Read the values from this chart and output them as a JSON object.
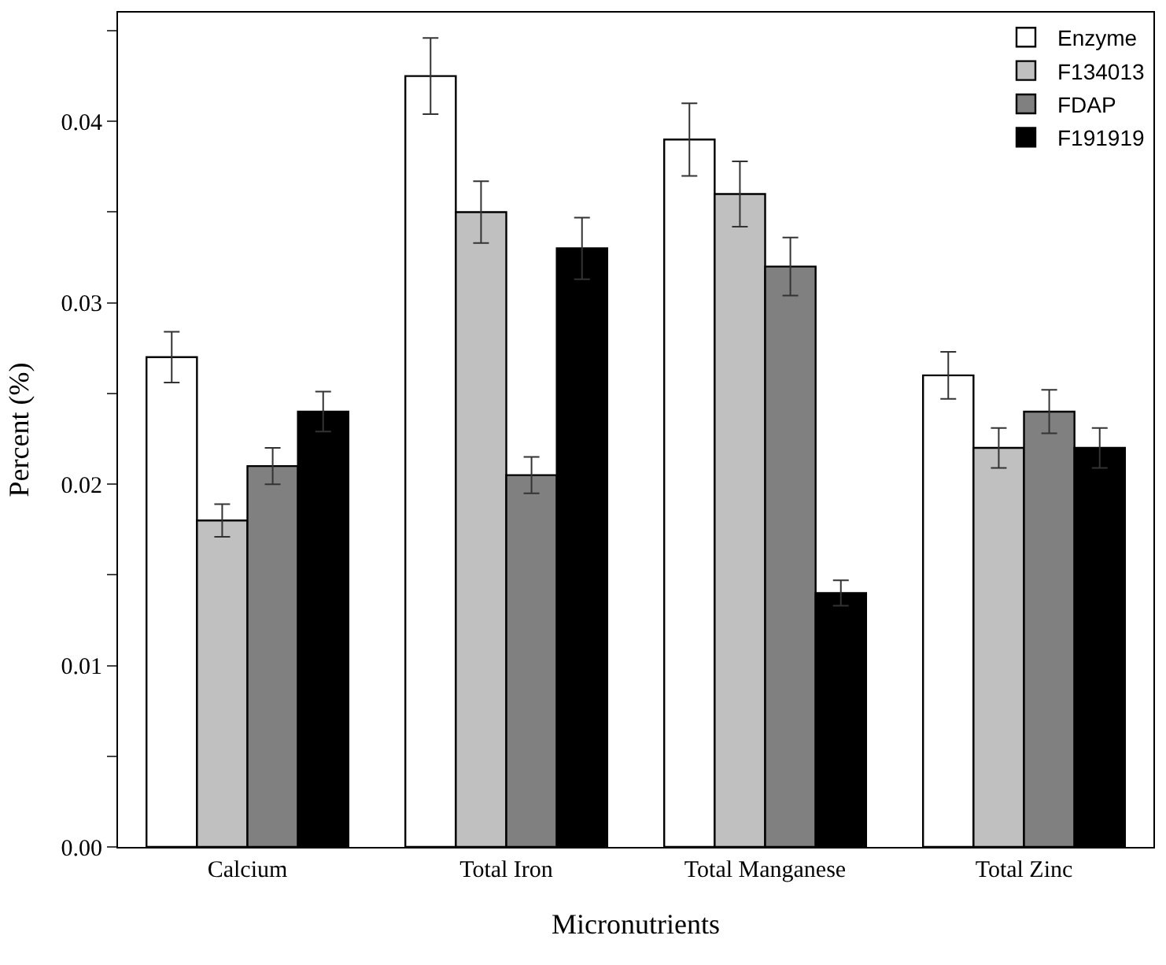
{
  "chart_data": {
    "type": "bar",
    "xlabel": "Micronutrients",
    "ylabel": "Percent (%)",
    "categories": [
      "Calcium",
      "Total Iron",
      "Total Manganese",
      "Total Zinc"
    ],
    "series": [
      {
        "name": "Enzyme",
        "color": "#ffffff",
        "values": [
          0.027,
          0.0425,
          0.039,
          0.026
        ],
        "errors": [
          0.0014,
          0.0021,
          0.002,
          0.0013
        ]
      },
      {
        "name": "F134013",
        "color": "#c0c0c0",
        "values": [
          0.018,
          0.035,
          0.036,
          0.022
        ],
        "errors": [
          0.0009,
          0.0017,
          0.0018,
          0.0011
        ]
      },
      {
        "name": "FDAP",
        "color": "#808080",
        "values": [
          0.021,
          0.0205,
          0.032,
          0.024
        ],
        "errors": [
          0.001,
          0.001,
          0.0016,
          0.0012
        ]
      },
      {
        "name": "F191919",
        "color": "#000000",
        "values": [
          0.024,
          0.033,
          0.014,
          0.022
        ],
        "errors": [
          0.0011,
          0.0017,
          0.0007,
          0.0011
        ]
      }
    ],
    "ylim": [
      0,
      0.046
    ],
    "yticks": [
      {
        "value": 0,
        "label": "0.00"
      },
      {
        "value": 0.005,
        "label": null
      },
      {
        "value": 0.01,
        "label": "0.01"
      },
      {
        "value": 0.015,
        "label": null
      },
      {
        "value": 0.02,
        "label": "0.02"
      },
      {
        "value": 0.025,
        "label": null
      },
      {
        "value": 0.03,
        "label": "0.03"
      },
      {
        "value": 0.035,
        "label": null
      },
      {
        "value": 0.04,
        "label": "0.04"
      },
      {
        "value": 0.045,
        "label": null
      }
    ],
    "legend": "top right"
  }
}
